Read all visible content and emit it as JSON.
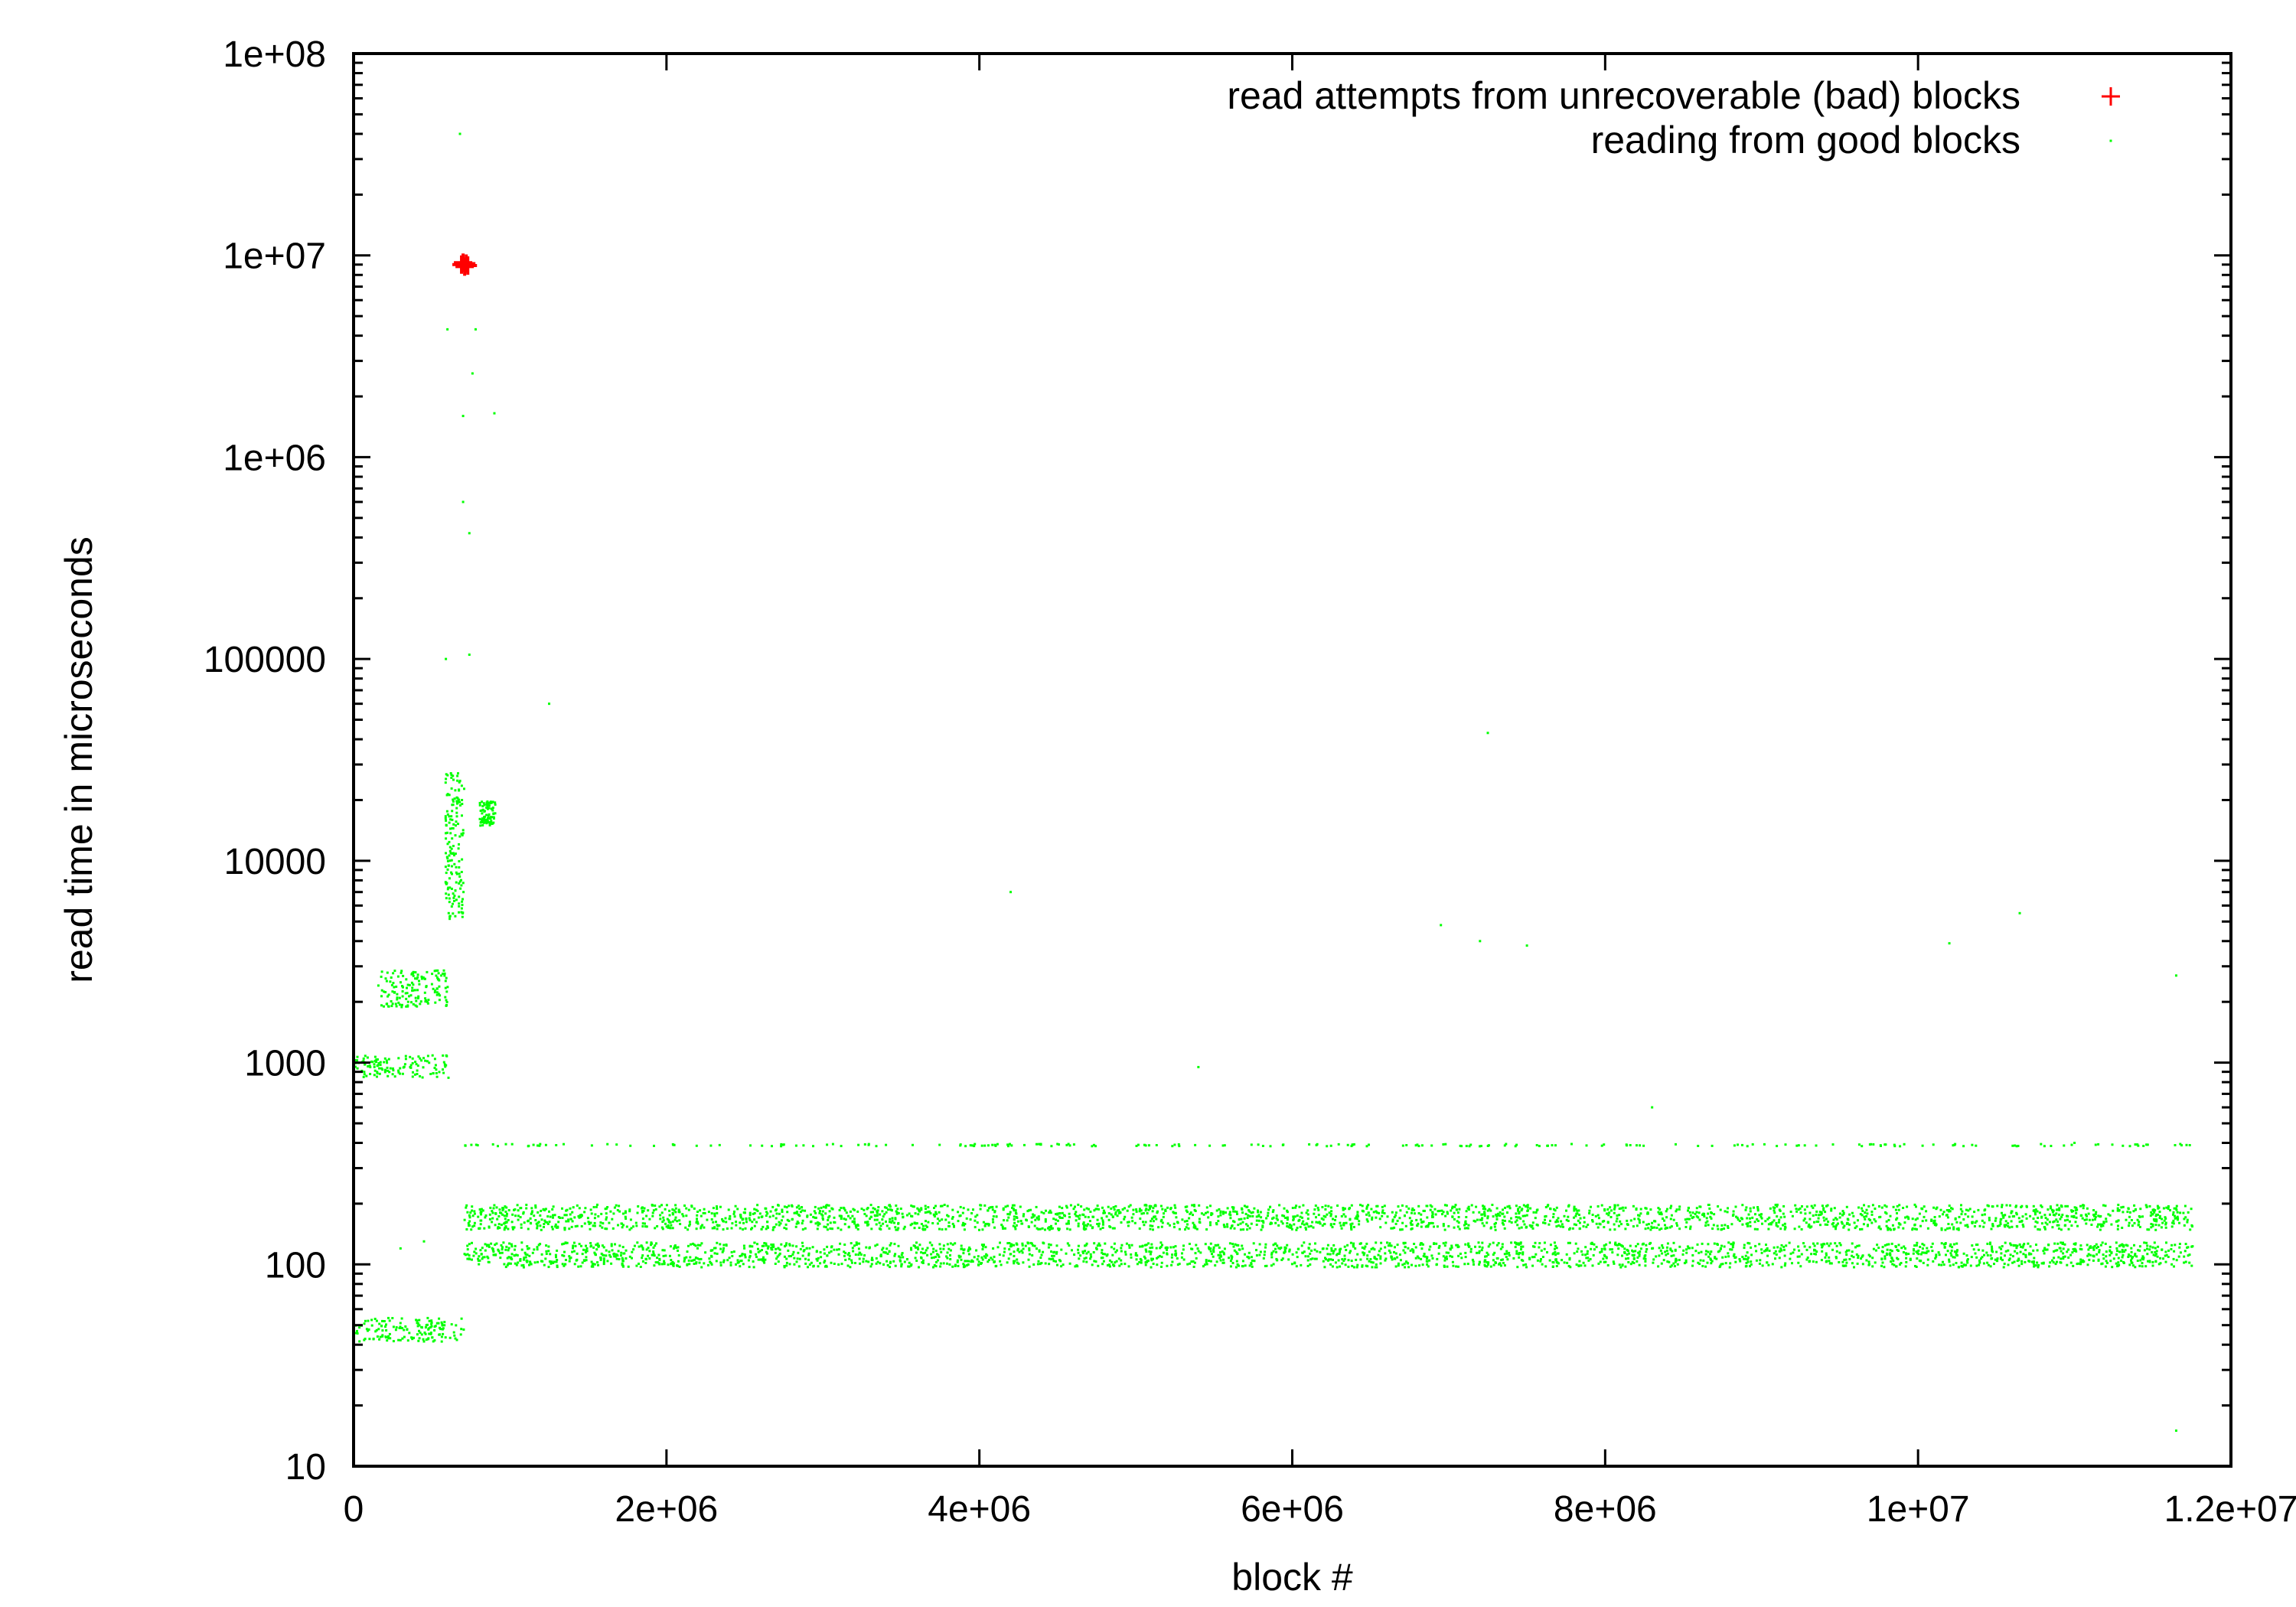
{
  "chart_data": {
    "type": "scatter",
    "title": "",
    "xlabel": "block #",
    "ylabel": "read time in microseconds",
    "xscale": "linear",
    "yscale": "log",
    "xlim": [
      0,
      12000000
    ],
    "ylim": [
      10,
      100000000
    ],
    "x_ticks": [
      {
        "value": 0,
        "label": "0"
      },
      {
        "value": 2000000,
        "label": "2e+06"
      },
      {
        "value": 4000000,
        "label": "4e+06"
      },
      {
        "value": 6000000,
        "label": "6e+06"
      },
      {
        "value": 8000000,
        "label": "8e+06"
      },
      {
        "value": 10000000,
        "label": "1e+07"
      },
      {
        "value": 12000000,
        "label": "1.2e+07"
      }
    ],
    "y_ticks": [
      {
        "value": 10,
        "label": "10"
      },
      {
        "value": 100,
        "label": "100"
      },
      {
        "value": 1000,
        "label": "1000"
      },
      {
        "value": 10000,
        "label": "10000"
      },
      {
        "value": 100000,
        "label": "100000"
      },
      {
        "value": 1000000,
        "label": "1e+06"
      },
      {
        "value": 10000000,
        "label": "1e+07"
      },
      {
        "value": 100000000,
        "label": "1e+08"
      }
    ],
    "grid": false,
    "legend_position": "top-right",
    "series": [
      {
        "name": "read attempts from unrecoverable (bad) blocks",
        "color": "#ff0000",
        "marker": "plus",
        "points": [
          [
            690000,
            9000000
          ],
          [
            700000,
            9200000
          ],
          [
            710000,
            8800000
          ],
          [
            720000,
            9100000
          ],
          [
            730000,
            8900000
          ]
        ]
      },
      {
        "name": "reading from good blocks",
        "color": "#00ff00",
        "marker": "dot",
        "bands": [
          {
            "x_range": [
              0,
              700000
            ],
            "y_range": [
              42,
              55
            ]
          },
          {
            "x_range": [
              700000,
              11750000
            ],
            "y_range": [
              98,
              130
            ]
          },
          {
            "x_range": [
              700000,
              11750000
            ],
            "y_range": [
              150,
              200
            ]
          },
          {
            "x_range": [
              700000,
              11750000
            ],
            "y_range": [
              390,
              400
            ]
          },
          {
            "x_range": [
              0,
              600000
            ],
            "y_range": [
              850,
              1100
            ]
          },
          {
            "x_range": [
              150000,
              600000
            ],
            "y_range": [
              1900,
              2900
            ]
          },
          {
            "x_range": [
              580000,
              700000
            ],
            "y_range": [
              5000,
              28000
            ]
          },
          {
            "x_range": [
              800000,
              900000
            ],
            "y_range": [
              15000,
              20000
            ]
          }
        ],
        "points": [
          [
            680000,
            40000000
          ],
          [
            600000,
            4300000
          ],
          [
            780000,
            4300000
          ],
          [
            760000,
            2600000
          ],
          [
            700000,
            1600000
          ],
          [
            900000,
            1650000
          ],
          [
            700000,
            600000
          ],
          [
            740000,
            420000
          ],
          [
            590000,
            100000
          ],
          [
            740000,
            105000
          ],
          [
            1250000,
            60000
          ],
          [
            7250000,
            43000
          ],
          [
            4200000,
            7000
          ],
          [
            6950000,
            4800
          ],
          [
            7200000,
            4000
          ],
          [
            7500000,
            3800
          ],
          [
            10650000,
            5500
          ],
          [
            10200000,
            3900
          ],
          [
            11650000,
            2700
          ],
          [
            5400000,
            950
          ],
          [
            8300000,
            600
          ],
          [
            11000000,
            400
          ],
          [
            11650000,
            15
          ],
          [
            300000,
            120
          ],
          [
            450000,
            130
          ]
        ]
      }
    ]
  }
}
